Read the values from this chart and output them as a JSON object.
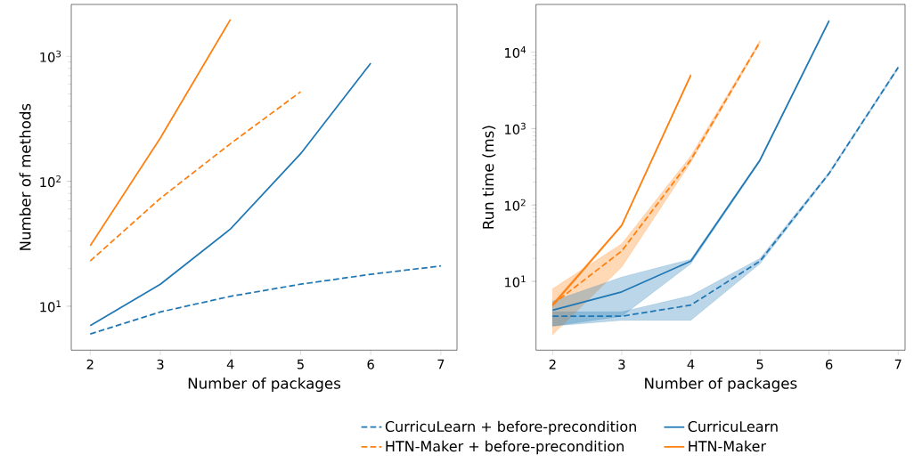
{
  "chart_data": [
    {
      "type": "line",
      "xlabel": "Number of packages",
      "ylabel": "Number of methods",
      "log": "y",
      "xlim": [
        1.73,
        7.23
      ],
      "ylim": [
        4.45,
        2600
      ],
      "xticks": [
        2,
        3,
        4,
        5,
        6,
        7
      ],
      "yticks": [
        {
          "value": 10,
          "label": "10$^{1}$"
        },
        {
          "value": 100,
          "label": "10$^{2}$"
        },
        {
          "value": 1000,
          "label": "10$^{3}$"
        }
      ],
      "legend": "bottom",
      "grid": false,
      "series": [
        {
          "name": "CurricuLearn + before-precondition",
          "color": "#1f77b4",
          "line_style": "dashed",
          "x": [
            2,
            3,
            4,
            5,
            6,
            7
          ],
          "values": [
            6,
            9,
            12,
            15,
            18,
            21
          ]
        },
        {
          "name": "HTN-Maker + before-precondition",
          "color": "#ff7f0e",
          "line_style": "dashed",
          "x": [
            2,
            3,
            4,
            5
          ],
          "values": [
            23,
            73,
            200,
            520
          ]
        },
        {
          "name": "CurricuLearn",
          "color": "#1f77b4",
          "line_style": "solid",
          "x": [
            2,
            3,
            4,
            5,
            6
          ],
          "values": [
            7,
            15,
            41.5,
            166,
            880
          ]
        },
        {
          "name": "HTN-Maker",
          "color": "#ff7f0e",
          "line_style": "solid",
          "x": [
            2,
            3,
            4
          ],
          "values": [
            30.5,
            222,
            1970
          ]
        }
      ]
    },
    {
      "type": "line",
      "xlabel": "Number of packages",
      "ylabel": "Run time (ms)",
      "log": "y",
      "xlim": [
        1.76,
        7.1
      ],
      "ylim": [
        1.26,
        42000
      ],
      "xticks": [
        2,
        3,
        4,
        5,
        6,
        7
      ],
      "yticks": [
        {
          "value": 10,
          "label": "10$^{1}$"
        },
        {
          "value": 100,
          "label": "10$^{2}$"
        },
        {
          "value": 1000,
          "label": "10$^{3}$"
        },
        {
          "value": 10000,
          "label": "10$^{4}$"
        }
      ],
      "grid": false,
      "series": [
        {
          "color": "#1f77b4",
          "line_style": "dashed",
          "x": [
            2,
            3,
            4,
            5,
            6,
            7
          ],
          "values": [
            3.5,
            3.5,
            4.9,
            18.4,
            258,
            6300
          ],
          "lower": [
            2.6,
            3.1,
            3.1,
            17,
            250,
            6000
          ],
          "upper": [
            4.0,
            4.0,
            6.5,
            20,
            270,
            6500
          ]
        },
        {
          "color": "#ff7f0e",
          "line_style": "dashed",
          "x": [
            2,
            3,
            4,
            5
          ],
          "values": [
            5,
            25,
            390,
            13600
          ],
          "lower": [
            2.0,
            15.4,
            360,
            13000
          ],
          "upper": [
            8,
            31,
            440,
            14200
          ]
        },
        {
          "color": "#1f77b4",
          "line_style": "solid",
          "x": [
            2,
            3,
            4,
            5,
            6
          ],
          "values": [
            4.2,
            7.3,
            18.4,
            385,
            25700
          ],
          "lower": [
            2.6,
            3.5,
            17,
            370,
            25000
          ],
          "upper": [
            5.5,
            11.4,
            19.5,
            400,
            26400
          ]
        },
        {
          "color": "#ff7f0e",
          "line_style": "solid",
          "x": [
            2,
            3,
            4
          ],
          "values": [
            4.9,
            54,
            5000
          ],
          "lower": [
            4.6,
            52,
            4800
          ],
          "upper": [
            5.2,
            56,
            5200
          ]
        }
      ]
    }
  ]
}
